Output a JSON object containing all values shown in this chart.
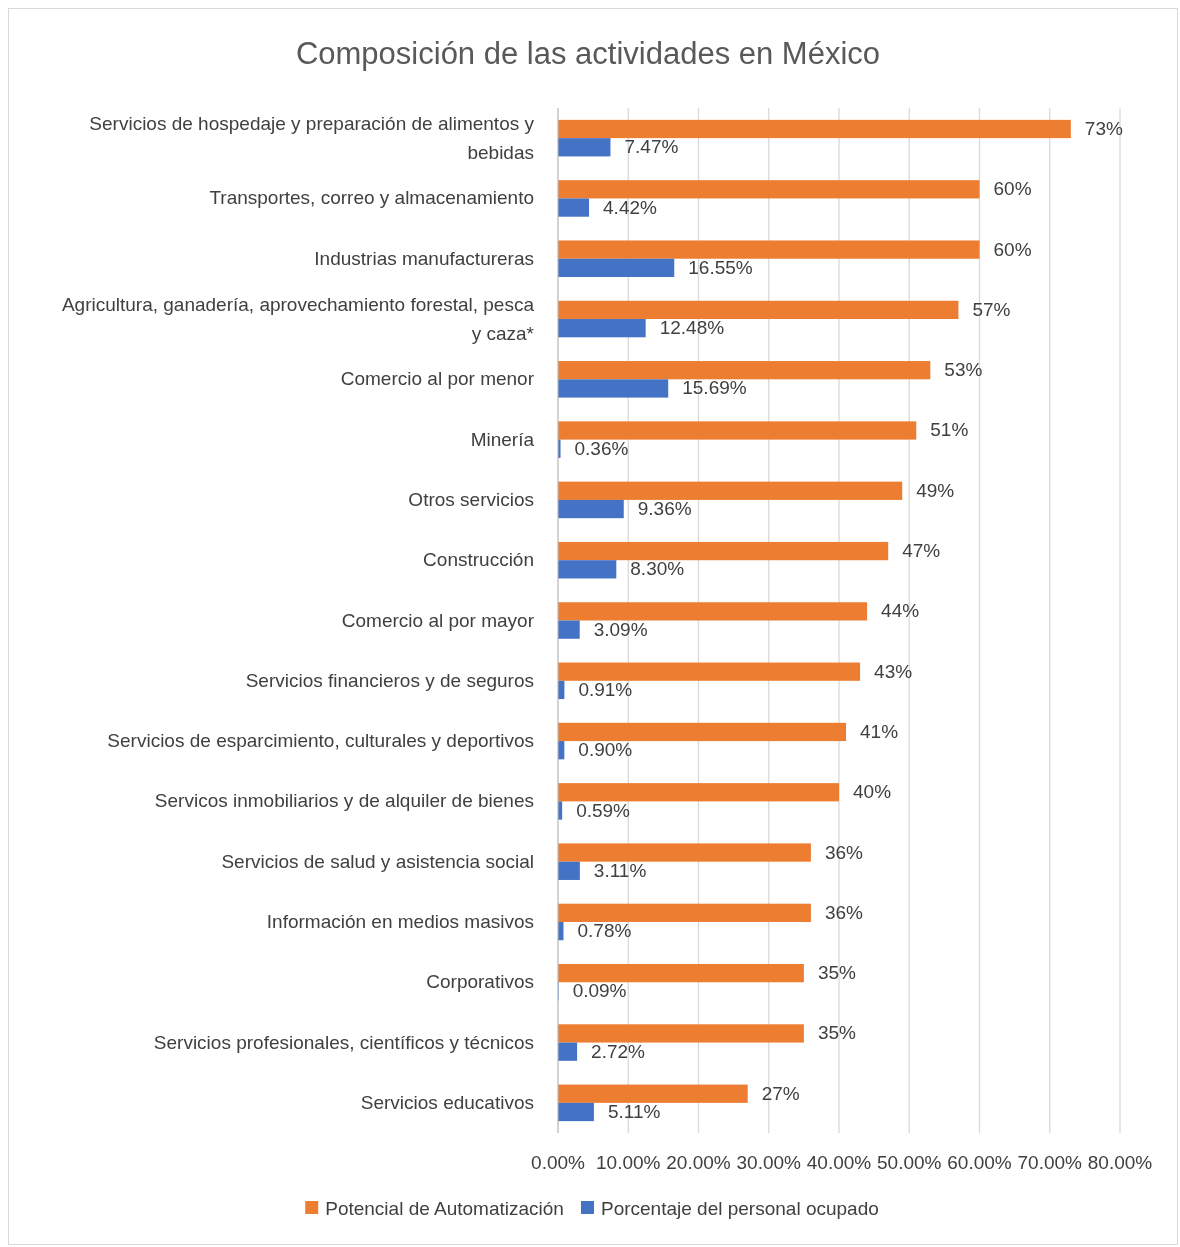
{
  "chart_data": {
    "type": "bar",
    "orientation": "horizontal",
    "title": "Composición de las actividades en México",
    "categories": [
      "Servicios de hospedaje y preparación de alimentos y bebidas",
      "Transportes, correo y almacenamiento",
      "Industrias manufactureras",
      "Agricultura, ganadería, aprovechamiento forestal, pesca y caza*",
      "Comercio al por menor",
      "Minería",
      "Otros servicios",
      "Construcción",
      "Comercio al por mayor",
      "Servicios financieros y de seguros",
      "Servicios de esparcimiento, culturales y deportivos",
      "Servicos inmobiliarios y de alquiler de bienes",
      "Servicios de salud y asistencia social",
      "Información en medios masivos",
      "Corporativos",
      "Servicios profesionales, científicos y técnicos",
      "Servicios educativos"
    ],
    "series": [
      {
        "name": "Potencial de Automatización",
        "color": "#ed7d31",
        "values": [
          73,
          60,
          60,
          57,
          53,
          51,
          49,
          47,
          44,
          43,
          41,
          40,
          36,
          36,
          35,
          35,
          27
        ],
        "value_labels": [
          "73%",
          "60%",
          "60%",
          "57%",
          "53%",
          "51%",
          "49%",
          "47%",
          "44%",
          "43%",
          "41%",
          "40%",
          "36%",
          "36%",
          "35%",
          "35%",
          "27%"
        ]
      },
      {
        "name": "Porcentaje del personal ocupado",
        "color": "#4472c4",
        "values": [
          7.47,
          4.42,
          16.55,
          12.48,
          15.69,
          0.36,
          9.36,
          8.3,
          3.09,
          0.91,
          0.9,
          0.59,
          3.11,
          0.78,
          0.09,
          2.72,
          5.11
        ],
        "value_labels": [
          "7.47%",
          "4.42%",
          "16.55%",
          "12.48%",
          "15.69%",
          "0.36%",
          "9.36%",
          "8.30%",
          "3.09%",
          "0.91%",
          "0.90%",
          "0.59%",
          "3.11%",
          "0.78%",
          "0.09%",
          "2.72%",
          "5.11%"
        ]
      }
    ],
    "xlim": [
      0,
      80
    ],
    "xticks": [
      {
        "value": 0,
        "label": "0.00%"
      },
      {
        "value": 10,
        "label": "10.00%"
      },
      {
        "value": 20,
        "label": "20.00%"
      },
      {
        "value": 30,
        "label": "30.00%"
      },
      {
        "value": 40,
        "label": "40.00%"
      },
      {
        "value": 50,
        "label": "50.00%"
      },
      {
        "value": 60,
        "label": "60.00%"
      },
      {
        "value": 70,
        "label": "70.00%"
      },
      {
        "value": 80,
        "label": "80.00%"
      }
    ],
    "grid": "x",
    "legend": "bottom"
  }
}
